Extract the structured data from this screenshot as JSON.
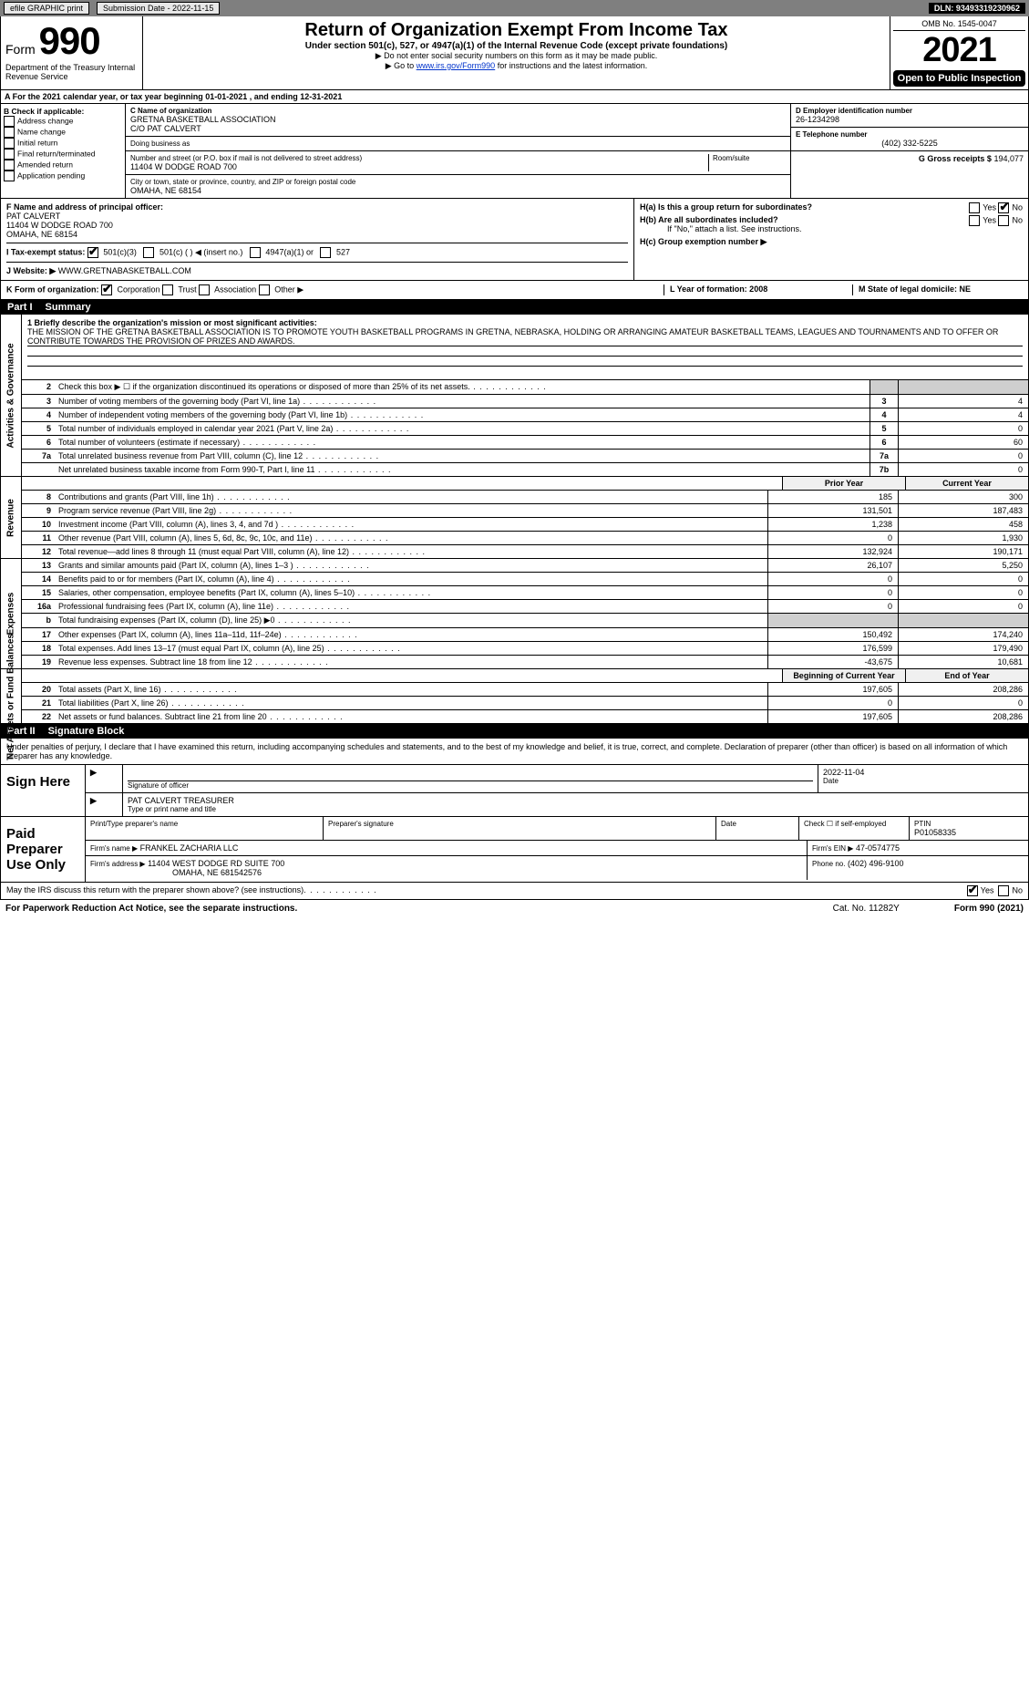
{
  "top_bar": {
    "efile": "efile GRAPHIC print",
    "submission": "Submission Date - 2022-11-15",
    "dln": "DLN: 93493319230962"
  },
  "form_header": {
    "form_label": "Form",
    "form_number": "990",
    "dept": "Department of the Treasury Internal Revenue Service",
    "title": "Return of Organization Exempt From Income Tax",
    "subtitle": "Under section 501(c), 527, or 4947(a)(1) of the Internal Revenue Code (except private foundations)",
    "note1": "▶ Do not enter social security numbers on this form as it may be made public.",
    "note2_pre": "▶ Go to ",
    "note2_link": "www.irs.gov/Form990",
    "note2_post": " for instructions and the latest information.",
    "omb": "OMB No. 1545-0047",
    "year": "2021",
    "open_public": "Open to Public Inspection"
  },
  "row_a": "A  For the 2021 calendar year, or tax year beginning 01-01-2021     , and ending 12-31-2021",
  "col_b": {
    "label": "B Check if applicable:",
    "items": [
      "Address change",
      "Name change",
      "Initial return",
      "Final return/terminated",
      "Amended return",
      "Application pending"
    ]
  },
  "col_c": {
    "name_label": "C Name of organization",
    "name": "GRETNA BASKETBALL ASSOCIATION",
    "care_of": "C/O PAT CALVERT",
    "dba_label": "Doing business as",
    "street_label": "Number and street (or P.O. box if mail is not delivered to street address)",
    "room_label": "Room/suite",
    "street": "11404 W DODGE ROAD 700",
    "city_label": "City or town, state or province, country, and ZIP or foreign postal code",
    "city": "OMAHA, NE  68154"
  },
  "col_d": {
    "d_label": "D Employer identification number",
    "d_val": "26-1234298",
    "e_label": "E Telephone number",
    "e_val": "(402) 332-5225",
    "g_label": "G Gross receipts $",
    "g_val": "194,077"
  },
  "fghij": {
    "f_label": "F Name and address of principal officer:",
    "f_name": "PAT CALVERT",
    "f_addr1": "11404 W DODGE ROAD 700",
    "f_addr2": "OMAHA, NE  68154",
    "i_label": "I  Tax-exempt status:",
    "i_501c3": "501(c)(3)",
    "i_501c": "501(c) (    ) ◀ (insert no.)",
    "i_4947": "4947(a)(1) or",
    "i_527": "527",
    "j_label": "J  Website: ▶",
    "j_val": "WWW.GRETNABASKETBALL.COM",
    "ha_label": "H(a)  Is this a group return for subordinates?",
    "hb_label": "H(b)  Are all subordinates included?",
    "hb_note": "If \"No,\" attach a list. See instructions.",
    "hc_label": "H(c)  Group exemption number ▶",
    "yes": "Yes",
    "no": "No"
  },
  "kl": {
    "k": "K Form of organization:",
    "k_corp": "Corporation",
    "k_trust": "Trust",
    "k_assoc": "Association",
    "k_other": "Other ▶",
    "l": "L Year of formation: 2008",
    "m": "M State of legal domicile: NE"
  },
  "part1": {
    "label": "Part I",
    "title": "Summary"
  },
  "mission": {
    "label": "1 Briefly describe the organization's mission or most significant activities:",
    "text": "THE MISSION OF THE GRETNA BASKETBALL ASSOCIATION IS TO PROMOTE YOUTH BASKETBALL PROGRAMS IN GRETNA, NEBRASKA, HOLDING OR ARRANGING AMATEUR BASKETBALL TEAMS, LEAGUES AND TOURNAMENTS AND TO OFFER OR CONTRIBUTE TOWARDS THE PROVISION OF PRIZES AND AWARDS."
  },
  "tabs": {
    "ag": "Activities & Governance",
    "rev": "Revenue",
    "exp": "Expenses",
    "na": "Net Assets or Fund Balances"
  },
  "gov_lines": [
    {
      "n": "2",
      "d": "Check this box ▶ ☐  if the organization discontinued its operations or disposed of more than 25% of its net assets.",
      "box": "",
      "v": ""
    },
    {
      "n": "3",
      "d": "Number of voting members of the governing body (Part VI, line 1a)",
      "box": "3",
      "v": "4"
    },
    {
      "n": "4",
      "d": "Number of independent voting members of the governing body (Part VI, line 1b)",
      "box": "4",
      "v": "4"
    },
    {
      "n": "5",
      "d": "Total number of individuals employed in calendar year 2021 (Part V, line 2a)",
      "box": "5",
      "v": "0"
    },
    {
      "n": "6",
      "d": "Total number of volunteers (estimate if necessary)",
      "box": "6",
      "v": "60"
    },
    {
      "n": "7a",
      "d": "Total unrelated business revenue from Part VIII, column (C), line 12",
      "box": "7a",
      "v": "0"
    },
    {
      "n": "",
      "d": "Net unrelated business taxable income from Form 990-T, Part I, line 11",
      "box": "7b",
      "v": "0"
    }
  ],
  "col_headers": {
    "prior": "Prior Year",
    "current": "Current Year",
    "begin": "Beginning of Current Year",
    "end": "End of Year"
  },
  "rev_lines": [
    {
      "n": "8",
      "d": "Contributions and grants (Part VIII, line 1h)",
      "p": "185",
      "c": "300"
    },
    {
      "n": "9",
      "d": "Program service revenue (Part VIII, line 2g)",
      "p": "131,501",
      "c": "187,483"
    },
    {
      "n": "10",
      "d": "Investment income (Part VIII, column (A), lines 3, 4, and 7d )",
      "p": "1,238",
      "c": "458"
    },
    {
      "n": "11",
      "d": "Other revenue (Part VIII, column (A), lines 5, 6d, 8c, 9c, 10c, and 11e)",
      "p": "0",
      "c": "1,930"
    },
    {
      "n": "12",
      "d": "Total revenue—add lines 8 through 11 (must equal Part VIII, column (A), line 12)",
      "p": "132,924",
      "c": "190,171"
    }
  ],
  "exp_lines": [
    {
      "n": "13",
      "d": "Grants and similar amounts paid (Part IX, column (A), lines 1–3 )",
      "p": "26,107",
      "c": "5,250"
    },
    {
      "n": "14",
      "d": "Benefits paid to or for members (Part IX, column (A), line 4)",
      "p": "0",
      "c": "0"
    },
    {
      "n": "15",
      "d": "Salaries, other compensation, employee benefits (Part IX, column (A), lines 5–10)",
      "p": "0",
      "c": "0"
    },
    {
      "n": "16a",
      "d": "Professional fundraising fees (Part IX, column (A), line 11e)",
      "p": "0",
      "c": "0"
    },
    {
      "n": "b",
      "d": "Total fundraising expenses (Part IX, column (D), line 25) ▶0",
      "p": "",
      "c": "",
      "shaded": true
    },
    {
      "n": "17",
      "d": "Other expenses (Part IX, column (A), lines 11a–11d, 11f–24e)",
      "p": "150,492",
      "c": "174,240"
    },
    {
      "n": "18",
      "d": "Total expenses. Add lines 13–17 (must equal Part IX, column (A), line 25)",
      "p": "176,599",
      "c": "179,490"
    },
    {
      "n": "19",
      "d": "Revenue less expenses. Subtract line 18 from line 12",
      "p": "-43,675",
      "c": "10,681"
    }
  ],
  "na_lines": [
    {
      "n": "20",
      "d": "Total assets (Part X, line 16)",
      "p": "197,605",
      "c": "208,286"
    },
    {
      "n": "21",
      "d": "Total liabilities (Part X, line 26)",
      "p": "0",
      "c": "0"
    },
    {
      "n": "22",
      "d": "Net assets or fund balances. Subtract line 21 from line 20",
      "p": "197,605",
      "c": "208,286"
    }
  ],
  "part2": {
    "label": "Part II",
    "title": "Signature Block"
  },
  "sig_text": "Under penalties of perjury, I declare that I have examined this return, including accompanying schedules and statements, and to the best of my knowledge and belief, it is true, correct, and complete. Declaration of preparer (other than officer) is based on all information of which preparer has any knowledge.",
  "sign_here": {
    "label": "Sign Here",
    "sig_label": "Signature of officer",
    "date_label": "Date",
    "date": "2022-11-04",
    "name": "PAT CALVERT  TREASURER",
    "name_label": "Type or print name and title"
  },
  "paid_prep": {
    "label": "Paid Preparer Use Only",
    "h_name": "Print/Type preparer's name",
    "h_sig": "Preparer's signature",
    "h_date": "Date",
    "h_check": "Check ☐ if self-employed",
    "h_ptin": "PTIN",
    "ptin": "P01058335",
    "firm_label": "Firm's name   ▶",
    "firm": "FRANKEL ZACHARIA LLC",
    "ein_label": "Firm's EIN ▶",
    "ein": "47-0574775",
    "addr_label": "Firm's address ▶",
    "addr1": "11404 WEST DODGE RD SUITE 700",
    "addr2": "OMAHA, NE  681542576",
    "phone_label": "Phone no.",
    "phone": "(402) 496-9100"
  },
  "footer": {
    "discuss": "May the IRS discuss this return with the preparer shown above? (see instructions)",
    "yes": "Yes",
    "no": "No",
    "paperwork": "For Paperwork Reduction Act Notice, see the separate instructions.",
    "cat": "Cat. No. 11282Y",
    "form": "Form 990 (2021)"
  }
}
